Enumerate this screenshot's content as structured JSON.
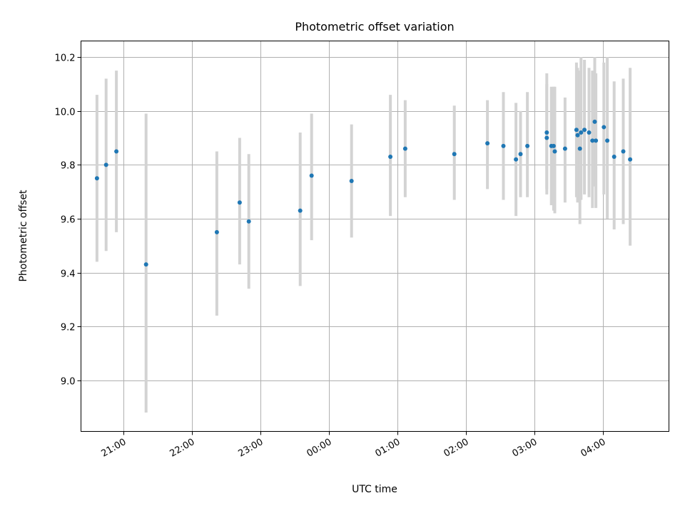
{
  "chart_data": {
    "type": "scatter",
    "title": "Photometric offset variation",
    "xlabel": "UTC time",
    "ylabel": "Photometric offset",
    "x_is_time": true,
    "xlim": [
      "20:23",
      "04:58"
    ],
    "ylim": [
      8.81,
      10.26
    ],
    "xticks": [
      "21:00",
      "22:00",
      "23:00",
      "00:00",
      "01:00",
      "02:00",
      "03:00",
      "04:00"
    ],
    "xtick_rotation_deg": 30,
    "yticks": [
      9.0,
      9.2,
      9.4,
      9.6,
      9.8,
      10.0,
      10.2
    ],
    "ytick_labels": [
      "9.0",
      "9.2",
      "9.4",
      "9.6",
      "9.8",
      "10.0",
      "10.2"
    ],
    "grid": true,
    "marker_color": "#1f77b4",
    "errorbar_color": "#d3d3d3",
    "points": [
      {
        "x": "20:37",
        "y": 9.75,
        "ylo": 9.44,
        "yhi": 10.06
      },
      {
        "x": "20:45",
        "y": 9.8,
        "ylo": 9.48,
        "yhi": 10.12
      },
      {
        "x": "20:54",
        "y": 9.85,
        "ylo": 9.55,
        "yhi": 10.15
      },
      {
        "x": "21:20",
        "y": 9.43,
        "ylo": 8.88,
        "yhi": 9.99
      },
      {
        "x": "22:22",
        "y": 9.55,
        "ylo": 9.24,
        "yhi": 9.85
      },
      {
        "x": "22:42",
        "y": 9.66,
        "ylo": 9.43,
        "yhi": 9.9
      },
      {
        "x": "22:50",
        "y": 9.59,
        "ylo": 9.34,
        "yhi": 9.84
      },
      {
        "x": "23:35",
        "y": 9.63,
        "ylo": 9.35,
        "yhi": 9.92
      },
      {
        "x": "23:45",
        "y": 9.76,
        "ylo": 9.52,
        "yhi": 9.99
      },
      {
        "x": "00:20",
        "y": 9.74,
        "ylo": 9.53,
        "yhi": 9.95
      },
      {
        "x": "00:54",
        "y": 9.83,
        "ylo": 9.61,
        "yhi": 10.06
      },
      {
        "x": "01:07",
        "y": 9.86,
        "ylo": 9.68,
        "yhi": 10.04
      },
      {
        "x": "01:50",
        "y": 9.84,
        "ylo": 9.67,
        "yhi": 10.02
      },
      {
        "x": "02:19",
        "y": 9.88,
        "ylo": 9.71,
        "yhi": 10.04
      },
      {
        "x": "02:33",
        "y": 9.87,
        "ylo": 9.67,
        "yhi": 10.07
      },
      {
        "x": "02:44",
        "y": 9.82,
        "ylo": 9.61,
        "yhi": 10.03
      },
      {
        "x": "02:48",
        "y": 9.84,
        "ylo": 9.68,
        "yhi": 10.0
      },
      {
        "x": "02:54",
        "y": 9.87,
        "ylo": 9.68,
        "yhi": 10.07
      },
      {
        "x": "03:11",
        "y": 9.92,
        "ylo": 9.69,
        "yhi": 10.14
      },
      {
        "x": "03:11",
        "y": 9.9,
        "ylo": 9.71,
        "yhi": 10.1
      },
      {
        "x": "03:15",
        "y": 9.87,
        "ylo": 9.65,
        "yhi": 10.09
      },
      {
        "x": "03:17",
        "y": 9.87,
        "ylo": 9.63,
        "yhi": 10.09
      },
      {
        "x": "03:18",
        "y": 9.85,
        "ylo": 9.62,
        "yhi": 10.09
      },
      {
        "x": "03:27",
        "y": 9.86,
        "ylo": 9.66,
        "yhi": 10.05
      },
      {
        "x": "03:37",
        "y": 9.93,
        "ylo": 9.68,
        "yhi": 10.18
      },
      {
        "x": "03:38",
        "y": 9.91,
        "ylo": 9.66,
        "yhi": 10.16
      },
      {
        "x": "03:40",
        "y": 9.86,
        "ylo": 9.58,
        "yhi": 10.15
      },
      {
        "x": "03:41",
        "y": 9.92,
        "ylo": 9.67,
        "yhi": 10.2
      },
      {
        "x": "03:44",
        "y": 9.93,
        "ylo": 9.69,
        "yhi": 10.19
      },
      {
        "x": "03:48",
        "y": 9.92,
        "ylo": 9.68,
        "yhi": 10.16
      },
      {
        "x": "03:51",
        "y": 9.89,
        "ylo": 9.64,
        "yhi": 10.15
      },
      {
        "x": "03:53",
        "y": 9.96,
        "ylo": 9.72,
        "yhi": 10.2
      },
      {
        "x": "03:54",
        "y": 9.89,
        "ylo": 9.64,
        "yhi": 10.14
      },
      {
        "x": "04:01",
        "y": 9.94,
        "ylo": 9.69,
        "yhi": 10.18
      },
      {
        "x": "04:04",
        "y": 9.89,
        "ylo": 9.6,
        "yhi": 10.2
      },
      {
        "x": "04:10",
        "y": 9.83,
        "ylo": 9.56,
        "yhi": 10.11
      },
      {
        "x": "04:18",
        "y": 9.85,
        "ylo": 9.58,
        "yhi": 10.12
      },
      {
        "x": "04:24",
        "y": 9.82,
        "ylo": 9.5,
        "yhi": 10.16
      }
    ]
  }
}
